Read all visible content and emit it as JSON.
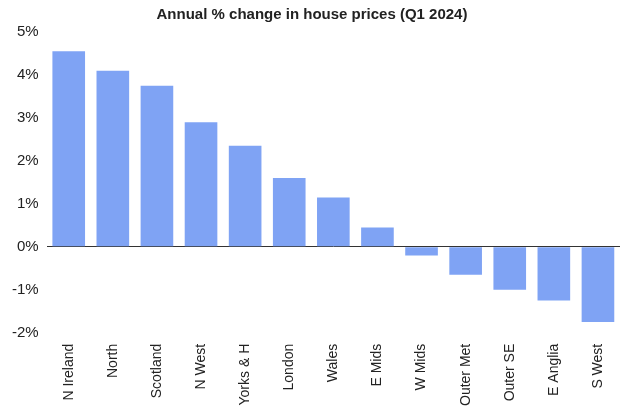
{
  "chart_data": {
    "type": "bar",
    "title": "Annual % change in house prices (Q1 2024)",
    "categories": [
      "N Ireland",
      "North",
      "Scotland",
      "N West",
      "Yorks & H",
      "London",
      "Wales",
      "E Mids",
      "W Mids",
      "Outer Met",
      "Outer SE",
      "E Anglia",
      "S West"
    ],
    "values": [
      4.55,
      4.1,
      3.75,
      2.9,
      2.35,
      1.6,
      1.15,
      0.45,
      -0.2,
      -0.65,
      -1.0,
      -1.25,
      -1.75
    ],
    "color": "#7fa3f4",
    "ylim": [
      -2,
      5
    ],
    "yticks": [
      {
        "value": -2,
        "label": "-2%"
      },
      {
        "value": -1,
        "label": "-1%"
      },
      {
        "value": 0,
        "label": "0%"
      },
      {
        "value": 1,
        "label": "1%"
      },
      {
        "value": 2,
        "label": "2%"
      },
      {
        "value": 3,
        "label": "3%"
      },
      {
        "value": 4,
        "label": "4%"
      },
      {
        "value": 5,
        "label": "5%"
      }
    ],
    "grid": false
  }
}
